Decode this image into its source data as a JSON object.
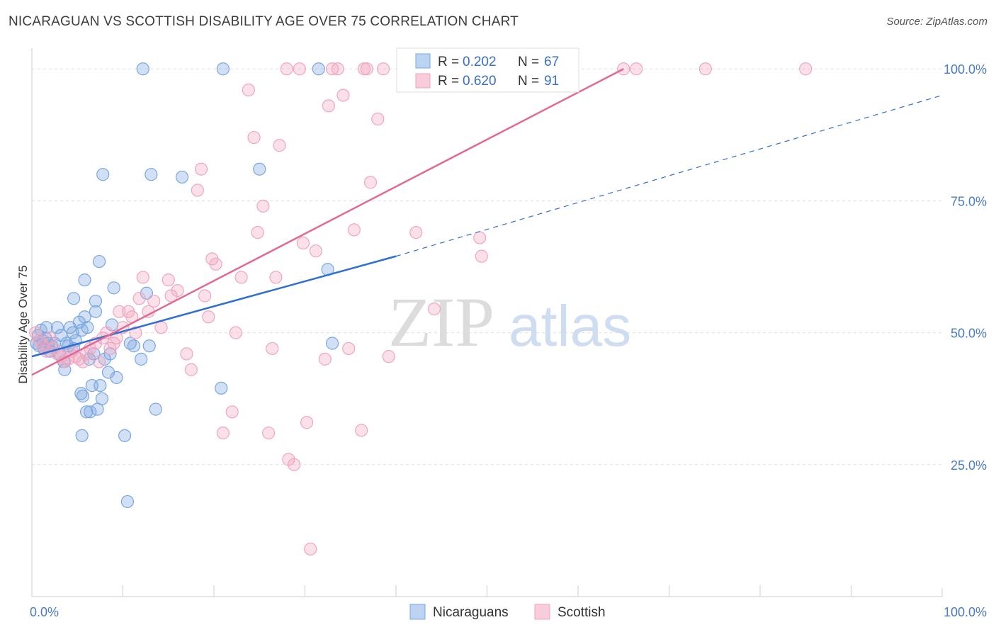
{
  "header": {
    "title": "NICARAGUAN VS SCOTTISH DISABILITY AGE OVER 75 CORRELATION CHART",
    "source": "Source: ZipAtlas.com"
  },
  "watermark": {
    "zip": "ZIP",
    "atlas": "atlas"
  },
  "colors": {
    "blue": "#7aa7e0",
    "blue_line": "#2f6fcf",
    "pink": "#f0a5c0",
    "pink_line": "#e06a95",
    "tick": "#4a7cc7"
  },
  "chart_data": {
    "type": "scatter",
    "ylabel": "Disability Age Over 75",
    "xlim": [
      0,
      100
    ],
    "ylim": [
      0,
      105
    ],
    "x_tick_labels": [
      {
        "v": 0,
        "label": "0.0%"
      },
      {
        "v": 100,
        "label": "100.0%"
      }
    ],
    "y_tick_labels": [
      {
        "v": 25,
        "label": "25.0%"
      },
      {
        "v": 50,
        "label": "50.0%"
      },
      {
        "v": 75,
        "label": "75.0%"
      },
      {
        "v": 100,
        "label": "100.0%"
      }
    ],
    "grid": true,
    "legend_top": [
      {
        "r_label": "R = ",
        "r": "0.202",
        "n_label": "N = ",
        "n": "67",
        "series": "Nicaraguans"
      },
      {
        "r_label": "R = ",
        "r": "0.620",
        "n_label": "N = ",
        "n": "91",
        "series": "Scottish"
      }
    ],
    "legend_bottom": [
      "Nicaraguans",
      "Scottish"
    ],
    "series": [
      {
        "name": "Nicaraguans",
        "points": [
          [
            0.5,
            48
          ],
          [
            0.7,
            49.5
          ],
          [
            0.8,
            47.5
          ],
          [
            1.0,
            50.5
          ],
          [
            1.2,
            48.5
          ],
          [
            1.3,
            47
          ],
          [
            1.5,
            49
          ],
          [
            1.6,
            51
          ],
          [
            1.8,
            48
          ],
          [
            2.0,
            46.5
          ],
          [
            2.2,
            47.5
          ],
          [
            2.5,
            48
          ],
          [
            2.8,
            51
          ],
          [
            3.0,
            46
          ],
          [
            3.2,
            49.5
          ],
          [
            3.5,
            44.5
          ],
          [
            3.6,
            43
          ],
          [
            3.8,
            48
          ],
          [
            4.0,
            47.5
          ],
          [
            4.2,
            51
          ],
          [
            4.5,
            50
          ],
          [
            4.6,
            47
          ],
          [
            4.8,
            48.5
          ],
          [
            5.2,
            52
          ],
          [
            5.5,
            50.5
          ],
          [
            4.6,
            56.5
          ],
          [
            5.4,
            38.5
          ],
          [
            5.5,
            30.5
          ],
          [
            5.6,
            38
          ],
          [
            5.8,
            60
          ],
          [
            5.8,
            53
          ],
          [
            6.0,
            35
          ],
          [
            6.1,
            51
          ],
          [
            6.3,
            45
          ],
          [
            6.4,
            35
          ],
          [
            6.6,
            40
          ],
          [
            6.8,
            46
          ],
          [
            7.0,
            56
          ],
          [
            7.0,
            54
          ],
          [
            7.2,
            35.5
          ],
          [
            7.4,
            63.5
          ],
          [
            7.5,
            40
          ],
          [
            7.7,
            37.5
          ],
          [
            7.8,
            80
          ],
          [
            8.0,
            45
          ],
          [
            8.4,
            42.5
          ],
          [
            8.8,
            51.5
          ],
          [
            8.6,
            46
          ],
          [
            9.0,
            58.5
          ],
          [
            9.3,
            41.5
          ],
          [
            10.2,
            30.5
          ],
          [
            10.5,
            18
          ],
          [
            10.8,
            48
          ],
          [
            11.2,
            47.5
          ],
          [
            12.0,
            45
          ],
          [
            12.2,
            100
          ],
          [
            12.6,
            57.5
          ],
          [
            12.9,
            47.5
          ],
          [
            13.1,
            80
          ],
          [
            13.6,
            35.5
          ],
          [
            16.5,
            79.5
          ],
          [
            20.8,
            39.5
          ],
          [
            21.0,
            100
          ],
          [
            25.0,
            81
          ],
          [
            31.5,
            100
          ],
          [
            33.0,
            48
          ],
          [
            32.5,
            62
          ]
        ]
      },
      {
        "name": "Scottish",
        "points": [
          [
            0.4,
            50
          ],
          [
            0.8,
            48.5
          ],
          [
            1.2,
            47.5
          ],
          [
            1.6,
            46.5
          ],
          [
            2.0,
            49
          ],
          [
            2.4,
            47
          ],
          [
            2.8,
            46
          ],
          [
            3.2,
            45.5
          ],
          [
            3.6,
            44.5
          ],
          [
            4.0,
            45
          ],
          [
            4.4,
            46.5
          ],
          [
            4.8,
            45.5
          ],
          [
            5.2,
            45
          ],
          [
            5.6,
            44.5
          ],
          [
            6.0,
            46
          ],
          [
            6.4,
            47
          ],
          [
            7.0,
            48
          ],
          [
            7.4,
            44.5
          ],
          [
            7.8,
            49
          ],
          [
            8.2,
            50
          ],
          [
            8.6,
            47
          ],
          [
            9.0,
            48
          ],
          [
            9.3,
            49
          ],
          [
            9.6,
            54
          ],
          [
            10.0,
            51
          ],
          [
            10.6,
            54
          ],
          [
            11.0,
            53
          ],
          [
            11.4,
            50
          ],
          [
            11.8,
            56.5
          ],
          [
            12.2,
            60.5
          ],
          [
            12.8,
            54
          ],
          [
            13.4,
            56
          ],
          [
            14.2,
            51
          ],
          [
            15.0,
            60
          ],
          [
            15.3,
            57
          ],
          [
            16.0,
            58
          ],
          [
            17.0,
            46
          ],
          [
            17.5,
            43
          ],
          [
            18.2,
            77
          ],
          [
            18.6,
            81
          ],
          [
            19.0,
            57
          ],
          [
            19.4,
            53
          ],
          [
            19.8,
            64
          ],
          [
            20.2,
            63
          ],
          [
            21.0,
            31
          ],
          [
            22.0,
            35
          ],
          [
            22.4,
            50
          ],
          [
            23.0,
            60.5
          ],
          [
            23.8,
            96
          ],
          [
            24.4,
            87
          ],
          [
            24.8,
            69
          ],
          [
            25.4,
            74
          ],
          [
            26.0,
            31
          ],
          [
            26.4,
            47
          ],
          [
            26.8,
            60.5
          ],
          [
            27.2,
            85.5
          ],
          [
            28.0,
            100
          ],
          [
            28.2,
            26
          ],
          [
            28.8,
            25
          ],
          [
            29.4,
            100
          ],
          [
            29.8,
            67
          ],
          [
            30.2,
            33
          ],
          [
            30.6,
            9
          ],
          [
            31.2,
            65.5
          ],
          [
            32.2,
            45
          ],
          [
            32.6,
            93
          ],
          [
            33.0,
            100
          ],
          [
            33.6,
            100
          ],
          [
            34.2,
            95
          ],
          [
            34.8,
            47
          ],
          [
            35.4,
            69.5
          ],
          [
            36.2,
            31.5
          ],
          [
            36.8,
            100
          ],
          [
            37.2,
            78.5
          ],
          [
            38.0,
            90.5
          ],
          [
            38.6,
            100
          ],
          [
            39.2,
            45.5
          ],
          [
            41.0,
            100
          ],
          [
            42.2,
            69
          ],
          [
            44.2,
            54.5
          ],
          [
            46.2,
            100
          ],
          [
            49.2,
            68
          ],
          [
            49.4,
            64.5
          ],
          [
            51.8,
            100
          ],
          [
            55.4,
            100
          ],
          [
            59.0,
            100
          ],
          [
            65.0,
            100
          ],
          [
            66.4,
            100
          ],
          [
            74.0,
            100
          ],
          [
            85.0,
            100
          ],
          [
            36.5,
            100
          ]
        ]
      }
    ],
    "trend_lines": [
      {
        "series": "Nicaraguans",
        "solid": [
          [
            0,
            45.5
          ],
          [
            40,
            64.5
          ]
        ],
        "dashed": [
          [
            40,
            64.5
          ],
          [
            100,
            95
          ]
        ]
      },
      {
        "series": "Scottish",
        "solid": [
          [
            0,
            42
          ],
          [
            65,
            100
          ]
        ]
      }
    ]
  }
}
